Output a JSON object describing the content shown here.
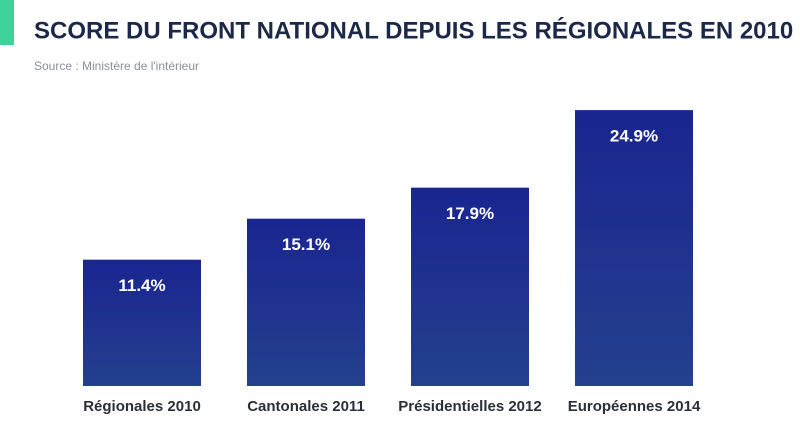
{
  "chart_data": {
    "type": "bar",
    "title": "SCORE DU FRONT NATIONAL DEPUIS LES RÉGIONALES EN 2010",
    "subtitle": "Source : Ministère de l'intérieur",
    "categories": [
      "Régionales 2010",
      "Cantonales 2011",
      "Présidentielles 2012",
      "Européennes 2014"
    ],
    "values": [
      11.4,
      15.1,
      17.9,
      24.9
    ],
    "value_labels": [
      "11.4%",
      "15.1%",
      "17.9%",
      "24.9%"
    ],
    "color": "#1a2590"
  }
}
